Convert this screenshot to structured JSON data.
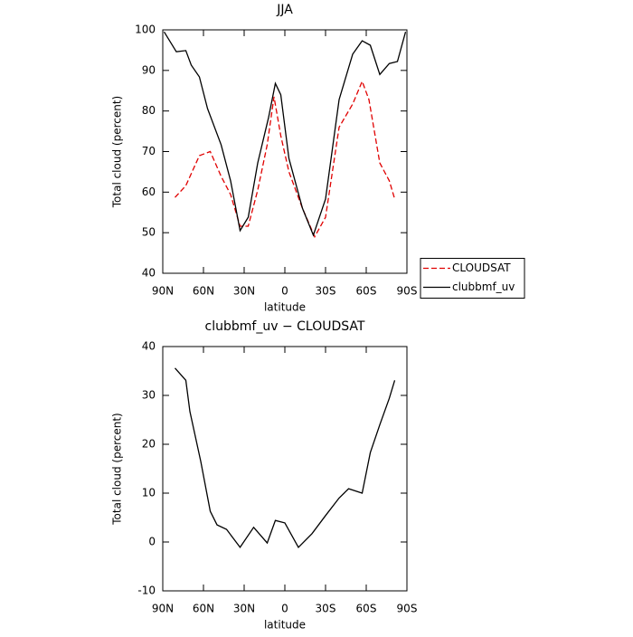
{
  "chart_data": [
    {
      "type": "line",
      "title": "JJA",
      "xlabel": "latitude",
      "ylabel": "Total cloud (percent)",
      "xlim": [
        90,
        -90
      ],
      "xticks": [
        {
          "value": 90,
          "label": "90N"
        },
        {
          "value": 60,
          "label": "60N"
        },
        {
          "value": 30,
          "label": "30N"
        },
        0,
        {
          "value": -30,
          "label": "30S"
        },
        {
          "value": -60,
          "label": "60S"
        },
        {
          "value": -90,
          "label": "90S"
        }
      ],
      "ylim": [
        40,
        100
      ],
      "yticks": [
        40,
        50,
        60,
        70,
        80,
        90,
        100
      ],
      "legend": "right",
      "series": [
        {
          "name": "CLOUDSAT",
          "color": "#e00000",
          "style": "dashed",
          "x": [
            81,
            73,
            63,
            55,
            47,
            40,
            33,
            27,
            20,
            13,
            8,
            3,
            -3,
            -13,
            -22,
            -30,
            -40,
            -50,
            -57,
            -62,
            -70,
            -77,
            -81
          ],
          "values": [
            58.7,
            61.6,
            69,
            70,
            63.9,
            59.4,
            51.6,
            51.6,
            60.5,
            71.7,
            83.5,
            73.9,
            65,
            56,
            49,
            53.8,
            76,
            81.7,
            87.3,
            82.8,
            67.2,
            62.8,
            58.3
          ]
        },
        {
          "name": "clubbmf_uv",
          "color": "#000000",
          "style": "solid",
          "x": [
            89,
            80,
            73,
            69,
            63,
            57,
            47,
            40,
            33,
            27,
            20,
            12,
            7,
            3,
            -3,
            -13,
            -21,
            -30,
            -40,
            -50,
            -57,
            -63,
            -70,
            -77,
            -83,
            -89
          ],
          "values": [
            99.5,
            94.6,
            94.9,
            91.3,
            88.4,
            80.6,
            71.7,
            62.8,
            50.5,
            53.8,
            67.2,
            78.4,
            86.8,
            84,
            68.3,
            56,
            49.4,
            58.3,
            82.8,
            94,
            97.3,
            96.2,
            89,
            91.7,
            92.2,
            99.5
          ]
        }
      ]
    },
    {
      "type": "line",
      "title": "clubbmf_uv − CLOUDSAT",
      "xlabel": "latitude",
      "ylabel": "Total cloud (percent)",
      "xlim": [
        90,
        -90
      ],
      "xticks": [
        {
          "value": 90,
          "label": "90N"
        },
        {
          "value": 60,
          "label": "60N"
        },
        {
          "value": 30,
          "label": "30N"
        },
        0,
        {
          "value": -30,
          "label": "30S"
        },
        {
          "value": -60,
          "label": "60S"
        },
        {
          "value": -90,
          "label": "90S"
        }
      ],
      "ylim": [
        -10,
        40
      ],
      "yticks": [
        -10,
        0,
        10,
        20,
        30,
        40
      ],
      "series": [
        {
          "color": "#000000",
          "style": "solid",
          "x": [
            81,
            73,
            70,
            62,
            55,
            50,
            43,
            33,
            23,
            13,
            7,
            0,
            -10,
            -20,
            -30,
            -40,
            -47,
            -57,
            -63,
            -70,
            -77,
            -81
          ],
          "values": [
            35.6,
            33.1,
            26.7,
            16.5,
            6.3,
            3.5,
            2.6,
            -1.1,
            3,
            -0.2,
            4.4,
            3.9,
            -1.1,
            1.7,
            5.4,
            9,
            10.9,
            10,
            18.3,
            24,
            29.4,
            33.1
          ]
        }
      ]
    }
  ]
}
